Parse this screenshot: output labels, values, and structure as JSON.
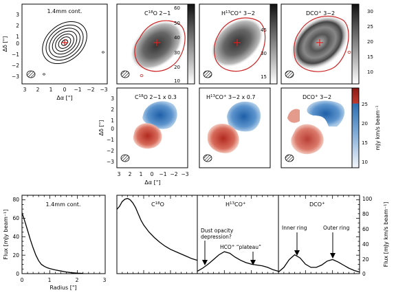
{
  "colors": {
    "contour": "#000000",
    "model_outline": "#cc2222",
    "cross": "#dd2222",
    "redshift": "#c03a2e",
    "blueshift": "#2d6fb0",
    "grey_map": "#555555"
  },
  "panels": {
    "continuum_map": {
      "label": "1.4mm cont."
    },
    "c18o_map": {
      "label_main": "C",
      "label_sup": "18",
      "label_rest": "O 2−1"
    },
    "h13co_map": {
      "label_main": "H",
      "label_sup": "13",
      "label_mid": "CO",
      "label_sup2": "+",
      "label_rest": " 3−2"
    },
    "dco_map": {
      "label_main": "DCO",
      "label_sup": "+",
      "label_rest": " 3−2"
    },
    "c18o_mom1": {
      "label_main": "C",
      "label_sup": "18",
      "label_rest": "O 2−1 x 0.3"
    },
    "h13co_mom1": {
      "label_main": "H",
      "label_sup": "13",
      "label_mid": "CO",
      "label_sup2": "+",
      "label_rest": " 3−2 x 0.7"
    },
    "dco_mom1": {
      "label_main": "DCO",
      "label_sup": "+",
      "label_rest": " 3−2"
    }
  },
  "axes": {
    "dec_label": "Δδ [\"]",
    "ra_label": "Δα [\"]",
    "top_ticks_y": [
      "3",
      "2",
      "1",
      "0",
      "−1",
      "−2",
      "−3"
    ],
    "top_ticks_x": [
      "3",
      "2",
      "1",
      "0",
      "−1",
      "−2",
      "−3"
    ],
    "mid_ticks_y": [
      "3",
      "2",
      "1",
      "0",
      "−1",
      "−2",
      "−3"
    ],
    "mid_ticks_x": [
      "3",
      "2",
      "1",
      "0",
      "−1",
      "−2",
      "−3"
    ]
  },
  "colorbars": {
    "c18o": {
      "ticks": [
        "60",
        "50",
        "40",
        "30",
        "20",
        "10"
      ]
    },
    "h13co": {
      "ticks": [
        "45",
        "30",
        "15"
      ]
    },
    "dco": {
      "ticks": [
        "30",
        "25",
        "20",
        "15",
        "10"
      ]
    },
    "mom1": {
      "ticks": [
        "25",
        "20",
        "15",
        "10"
      ],
      "label": "mJy km/s beam⁻¹"
    }
  },
  "profiles": {
    "ylabel_left": "Flux [mJy beam⁻¹]",
    "ylabel_right": "Flux [mJy km/s beam⁻¹]",
    "xlabel": "Radius [\"]",
    "x_ticks": [
      "0",
      "1",
      "2",
      "3"
    ],
    "y_ticks_left": [
      "0",
      "20",
      "40",
      "60",
      "80"
    ],
    "y_ticks_right": [
      "0",
      "20",
      "40",
      "60",
      "80",
      "100"
    ],
    "panel_labels": {
      "cont": "1.4mm cont.",
      "c18o": {
        "main": "C",
        "sup": "18",
        "rest": "O"
      },
      "h13co": {
        "main": "H",
        "sup": "13",
        "mid": "CO",
        "sup2": "+"
      },
      "dco": {
        "main": "DCO",
        "sup": "+"
      }
    },
    "annotations": {
      "dust_1": "Dust opacity",
      "dust_2": "depression?",
      "plateau_a": "HCO",
      "plateau_sup": "+",
      "plateau_b": " “plateau”",
      "inner": "Inner ring",
      "outer": "Outer ring"
    }
  },
  "chart_data": {
    "type": "line",
    "xlabel": "Radius [\"]",
    "ylabel": "Flux [mJy beam⁻¹]",
    "xlim": [
      0,
      3
    ],
    "ylim_left": [
      0,
      85
    ],
    "ylim_right": [
      0,
      100
    ],
    "series": [
      {
        "name": "1.4mm cont.",
        "x": [
          0,
          0.1,
          0.2,
          0.3,
          0.4,
          0.5,
          0.6,
          0.7,
          0.8,
          0.9,
          1.0,
          1.2,
          1.4,
          1.6,
          1.8,
          2.0,
          2.2
        ],
        "y": [
          66,
          57,
          47,
          37,
          28,
          20,
          14,
          10,
          8,
          6.5,
          5.5,
          4,
          2.8,
          1.8,
          1,
          0.5,
          0.2
        ]
      },
      {
        "name": "C18O",
        "x": [
          0,
          0.1,
          0.2,
          0.3,
          0.4,
          0.5,
          0.6,
          0.7,
          0.8,
          0.9,
          1.0,
          1.2,
          1.4,
          1.6,
          1.8,
          2.0,
          2.2,
          2.4,
          2.6,
          2.8,
          3.0
        ],
        "y": [
          82,
          86,
          92,
          95,
          96,
          94,
          90,
          84,
          76,
          68,
          62,
          53,
          46,
          40,
          35,
          31,
          28,
          25,
          22,
          19,
          17
        ]
      },
      {
        "name": "H13CO+",
        "x": [
          0,
          0.2,
          0.4,
          0.6,
          0.8,
          1.0,
          1.2,
          1.4,
          1.6,
          1.8,
          2.0,
          2.2,
          2.4,
          2.6,
          2.8,
          3.0
        ],
        "y": [
          3,
          7,
          12,
          18,
          24,
          28,
          26,
          21,
          17,
          14,
          12,
          11,
          10,
          8,
          5,
          3
        ]
      },
      {
        "name": "DCO+",
        "x": [
          0,
          0.2,
          0.4,
          0.6,
          0.8,
          1.0,
          1.2,
          1.4,
          1.6,
          1.8,
          2.0,
          2.2,
          2.4,
          2.6,
          2.8,
          3.0
        ],
        "y": [
          2,
          8,
          18,
          24,
          20,
          12,
          8,
          8,
          11,
          16,
          18,
          15,
          11,
          7,
          4,
          2
        ]
      }
    ]
  }
}
